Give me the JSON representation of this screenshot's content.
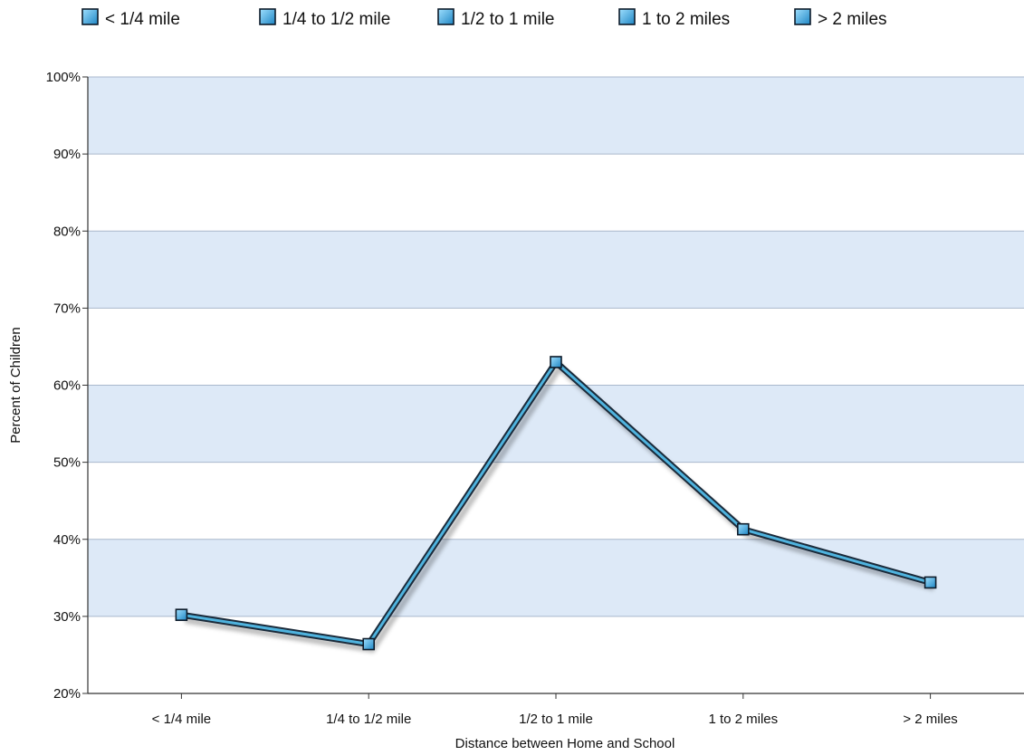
{
  "chart_data": {
    "type": "line",
    "categories": [
      "< 1/4 mile",
      "1/4 to 1/2 mile",
      "1/2 to 1 mile",
      "1 to 2 miles",
      "> 2 miles"
    ],
    "values": [
      30.2,
      26.4,
      63.0,
      41.3,
      34.4
    ],
    "xlabel": "Distance between Home and School",
    "ylabel": "Percent of Children",
    "ylim": [
      20,
      100
    ],
    "y_ticks": [
      "20%",
      "30%",
      "40%",
      "50%",
      "60%",
      "70%",
      "80%",
      "90%",
      "100%"
    ],
    "grid": true,
    "banded_background": true,
    "legend_position": "top",
    "legend": [
      "< 1/4 mile",
      "1/4 to 1/2 mile",
      "1/2 to 1 mile",
      "1 to 2 miles",
      "> 2 miles"
    ],
    "colors": {
      "line": "#4fb3de",
      "line_outline": "#1a2a3a",
      "marker_fill": "#3aa0d8",
      "band": "#dde9f7",
      "grid": "#a9b8cc",
      "axis": "#333333"
    }
  }
}
